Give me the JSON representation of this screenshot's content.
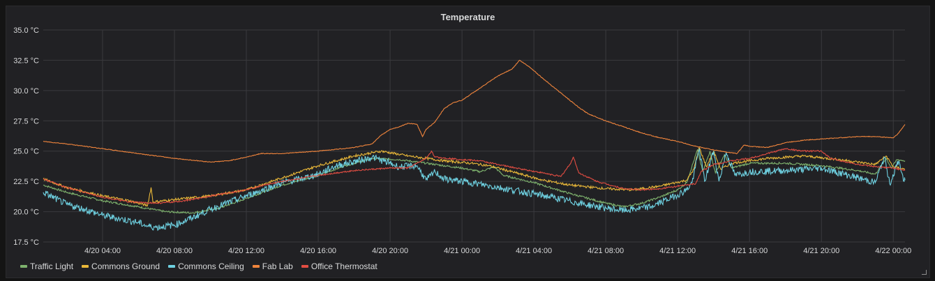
{
  "panel": {
    "title": "Temperature"
  },
  "chart_data": {
    "type": "line",
    "title": "Temperature",
    "unit": "°C",
    "ylim": [
      17.5,
      35.0
    ],
    "y_ticks": [
      "17.5 °C",
      "20.0 °C",
      "22.5 °C",
      "25.0 °C",
      "27.5 °C",
      "30.0 °C",
      "32.5 °C",
      "35.0 °C"
    ],
    "y_tick_values": [
      17.5,
      20.0,
      22.5,
      25.0,
      27.5,
      30.0,
      32.5,
      35.0
    ],
    "xlim": [
      0.7,
      48.65
    ],
    "x_ticks": [
      "4/20 04:00",
      "4/20 08:00",
      "4/20 12:00",
      "4/20 16:00",
      "4/20 20:00",
      "4/21 00:00",
      "4/21 04:00",
      "4/21 08:00",
      "4/21 12:00",
      "4/21 16:00",
      "4/21 20:00",
      "4/22 00:00"
    ],
    "x_tick_values": [
      4,
      8,
      12,
      16,
      20,
      24,
      28,
      32,
      36,
      40,
      44,
      48
    ],
    "grid": true,
    "legend_position": "bottom-left",
    "series": [
      {
        "name": "Traffic Light",
        "color": "#7eb26d",
        "points": [
          [
            0.7,
            22.2
          ],
          [
            2,
            21.6
          ],
          [
            4,
            20.9
          ],
          [
            6,
            20.4
          ],
          [
            7.5,
            20.0
          ],
          [
            9,
            19.9
          ],
          [
            10.5,
            20.3
          ],
          [
            12,
            21.1
          ],
          [
            14,
            22.2
          ],
          [
            16,
            23.0
          ],
          [
            17.5,
            23.8
          ],
          [
            19,
            24.4
          ],
          [
            20.5,
            24.3
          ],
          [
            22,
            24.0
          ],
          [
            24,
            23.6
          ],
          [
            25,
            23.3
          ],
          [
            25.8,
            23.7
          ],
          [
            26.3,
            23.0
          ],
          [
            28,
            22.4
          ],
          [
            30,
            21.5
          ],
          [
            32,
            20.7
          ],
          [
            33,
            20.4
          ],
          [
            34,
            20.7
          ],
          [
            35,
            21.2
          ],
          [
            36,
            21.8
          ],
          [
            36.5,
            22.4
          ],
          [
            37.1,
            25.1
          ],
          [
            37.4,
            23.3
          ],
          [
            37.8,
            25.0
          ],
          [
            38.1,
            23.2
          ],
          [
            38.6,
            24.7
          ],
          [
            39,
            23.6
          ],
          [
            40,
            24.0
          ],
          [
            42,
            24.0
          ],
          [
            44,
            23.8
          ],
          [
            46,
            23.4
          ],
          [
            47,
            23.1
          ],
          [
            47.6,
            24.4
          ],
          [
            47.9,
            23.6
          ],
          [
            48.2,
            24.3
          ],
          [
            48.65,
            24.2
          ]
        ]
      },
      {
        "name": "Commons Ground",
        "color": "#eab839",
        "points": [
          [
            0.7,
            22.7
          ],
          [
            2,
            22.0
          ],
          [
            4,
            21.3
          ],
          [
            5.5,
            20.9
          ],
          [
            6.5,
            20.5
          ],
          [
            6.7,
            22.0
          ],
          [
            6.8,
            20.8
          ],
          [
            8,
            21.0
          ],
          [
            10,
            21.3
          ],
          [
            12,
            21.8
          ],
          [
            14,
            22.8
          ],
          [
            16,
            23.8
          ],
          [
            18,
            24.6
          ],
          [
            19.5,
            25.0
          ],
          [
            21,
            24.6
          ],
          [
            23,
            24.2
          ],
          [
            24.5,
            24.0
          ],
          [
            25.5,
            23.8
          ],
          [
            27,
            23.2
          ],
          [
            28.5,
            22.6
          ],
          [
            30,
            22.2
          ],
          [
            32,
            21.9
          ],
          [
            33.5,
            21.8
          ],
          [
            35,
            22.1
          ],
          [
            36.5,
            22.6
          ],
          [
            36.9,
            23.5
          ],
          [
            37.2,
            25.3
          ],
          [
            37.6,
            23.7
          ],
          [
            38,
            25.0
          ],
          [
            38.4,
            23.5
          ],
          [
            39,
            24.0
          ],
          [
            41,
            24.4
          ],
          [
            43,
            24.6
          ],
          [
            45,
            24.3
          ],
          [
            47,
            23.9
          ],
          [
            47.6,
            24.6
          ],
          [
            48,
            23.7
          ],
          [
            48.65,
            23.5
          ]
        ]
      },
      {
        "name": "Commons Ceiling",
        "color": "#6ed0e0",
        "points": [
          [
            0.7,
            21.6
          ],
          [
            2,
            20.6
          ],
          [
            3,
            20.2
          ],
          [
            4,
            19.7
          ],
          [
            5,
            19.4
          ],
          [
            6,
            19.1
          ],
          [
            6.5,
            18.8
          ],
          [
            7,
            18.7
          ],
          [
            8,
            18.9
          ],
          [
            9,
            19.5
          ],
          [
            10,
            20.2
          ],
          [
            12,
            21.3
          ],
          [
            14,
            22.4
          ],
          [
            15,
            22.7
          ],
          [
            16,
            23.1
          ],
          [
            17,
            23.8
          ],
          [
            18.5,
            24.3
          ],
          [
            19,
            24.5
          ],
          [
            20,
            24.0
          ],
          [
            20.5,
            23.7
          ],
          [
            21.5,
            23.8
          ],
          [
            22,
            22.6
          ],
          [
            22.5,
            23.3
          ],
          [
            23,
            22.7
          ],
          [
            24.5,
            22.4
          ],
          [
            26,
            22.0
          ],
          [
            27.5,
            21.6
          ],
          [
            29,
            21.2
          ],
          [
            30.5,
            20.7
          ],
          [
            32,
            20.3
          ],
          [
            33,
            20.1
          ],
          [
            34.5,
            20.4
          ],
          [
            36,
            21.4
          ],
          [
            36.5,
            21.8
          ],
          [
            36.8,
            22.4
          ],
          [
            37.2,
            25.2
          ],
          [
            37.5,
            22.5
          ],
          [
            38,
            25.0
          ],
          [
            38.3,
            22.5
          ],
          [
            38.7,
            24.9
          ],
          [
            39.2,
            23.0
          ],
          [
            40,
            23.3
          ],
          [
            42,
            23.4
          ],
          [
            44,
            23.6
          ],
          [
            46,
            22.8
          ],
          [
            47,
            22.4
          ],
          [
            47.5,
            24.5
          ],
          [
            47.8,
            22.3
          ],
          [
            48.3,
            24.2
          ],
          [
            48.6,
            22.5
          ],
          [
            48.65,
            22.6
          ]
        ]
      },
      {
        "name": "Fab Lab",
        "color": "#ef843c",
        "points": [
          [
            0.7,
            25.8
          ],
          [
            2,
            25.6
          ],
          [
            4,
            25.2
          ],
          [
            6,
            24.8
          ],
          [
            8,
            24.4
          ],
          [
            10,
            24.1
          ],
          [
            11,
            24.2
          ],
          [
            12,
            24.5
          ],
          [
            12.8,
            24.8
          ],
          [
            14,
            24.8
          ],
          [
            16,
            25.0
          ],
          [
            18,
            25.3
          ],
          [
            19,
            25.6
          ],
          [
            19.5,
            26.3
          ],
          [
            20,
            26.8
          ],
          [
            20.5,
            27.0
          ],
          [
            21,
            27.3
          ],
          [
            21.5,
            27.2
          ],
          [
            21.8,
            26.2
          ],
          [
            22,
            26.8
          ],
          [
            22.5,
            27.4
          ],
          [
            23,
            28.5
          ],
          [
            23.5,
            29.0
          ],
          [
            24,
            29.2
          ],
          [
            25,
            30.2
          ],
          [
            26,
            31.2
          ],
          [
            26.8,
            31.8
          ],
          [
            27.2,
            32.5
          ],
          [
            27.8,
            31.9
          ],
          [
            28.5,
            31.0
          ],
          [
            29.5,
            29.8
          ],
          [
            30.5,
            28.6
          ],
          [
            31,
            28.1
          ],
          [
            32,
            27.5
          ],
          [
            33,
            27.0
          ],
          [
            34,
            26.5
          ],
          [
            35,
            26.1
          ],
          [
            36,
            25.8
          ],
          [
            37,
            25.4
          ],
          [
            38,
            25.1
          ],
          [
            38.8,
            24.9
          ],
          [
            39.3,
            24.8
          ],
          [
            39.7,
            25.5
          ],
          [
            40,
            25.4
          ],
          [
            41,
            25.3
          ],
          [
            42,
            25.7
          ],
          [
            43,
            25.9
          ],
          [
            44,
            26.0
          ],
          [
            45,
            26.1
          ],
          [
            46,
            26.2
          ],
          [
            47,
            26.2
          ],
          [
            48,
            26.1
          ],
          [
            48.3,
            26.5
          ],
          [
            48.65,
            27.2
          ]
        ]
      },
      {
        "name": "Office Thermostat",
        "color": "#e24d42",
        "points": [
          [
            0.7,
            22.7
          ],
          [
            2,
            22.0
          ],
          [
            3,
            21.6
          ],
          [
            4,
            21.2
          ],
          [
            5.5,
            20.8
          ],
          [
            7,
            20.7
          ],
          [
            8,
            20.8
          ],
          [
            9,
            21.0
          ],
          [
            10,
            21.3
          ],
          [
            12,
            21.8
          ],
          [
            13,
            22.2
          ],
          [
            14,
            22.5
          ],
          [
            16,
            23.0
          ],
          [
            18,
            23.4
          ],
          [
            20,
            23.6
          ],
          [
            21,
            23.6
          ],
          [
            22,
            24.4
          ],
          [
            22.3,
            25.0
          ],
          [
            22.5,
            24.5
          ],
          [
            24,
            24.3
          ],
          [
            25,
            24.2
          ],
          [
            26,
            23.9
          ],
          [
            27,
            23.6
          ],
          [
            28.5,
            23.2
          ],
          [
            29.5,
            22.9
          ],
          [
            30,
            23.9
          ],
          [
            30.2,
            24.5
          ],
          [
            30.5,
            23.2
          ],
          [
            31.5,
            22.5
          ],
          [
            33,
            21.9
          ],
          [
            34,
            21.8
          ],
          [
            35,
            21.9
          ],
          [
            36,
            22.1
          ],
          [
            37,
            22.3
          ],
          [
            37.3,
            23.3
          ],
          [
            38,
            23.9
          ],
          [
            39,
            24.2
          ],
          [
            40,
            24.4
          ],
          [
            41,
            24.8
          ],
          [
            42,
            25.2
          ],
          [
            43,
            25.0
          ],
          [
            44,
            25.0
          ],
          [
            44.5,
            24.4
          ],
          [
            46,
            23.9
          ],
          [
            47,
            23.7
          ],
          [
            48,
            23.6
          ],
          [
            48.65,
            23.4
          ]
        ]
      }
    ]
  }
}
